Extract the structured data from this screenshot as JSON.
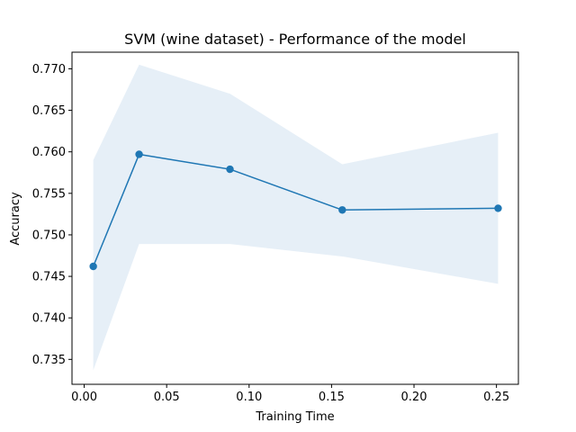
{
  "chart_data": {
    "type": "line",
    "title": "SVM (wine dataset) - Performance of the model",
    "xlabel": "Training Time",
    "ylabel": "Accuracy",
    "xlim": [
      -0.0074,
      0.2633
    ],
    "ylim": [
      0.732,
      0.772
    ],
    "grid": false,
    "x_ticks": [
      0.0,
      0.05,
      0.1,
      0.15,
      0.2,
      0.25
    ],
    "x_tick_labels": [
      "0.00",
      "0.05",
      "0.10",
      "0.15",
      "0.20",
      "0.25"
    ],
    "y_ticks": [
      0.735,
      0.74,
      0.745,
      0.75,
      0.755,
      0.76,
      0.765,
      0.77
    ],
    "y_tick_labels": [
      "0.735",
      "0.740",
      "0.745",
      "0.750",
      "0.755",
      "0.760",
      "0.765",
      "0.770"
    ],
    "series": [
      {
        "x": [
          0.0055,
          0.0333,
          0.0884,
          0.1565,
          0.251
        ],
        "y": [
          0.7462,
          0.7597,
          0.7579,
          0.753,
          0.7532
        ],
        "band_upper": [
          0.759,
          0.7705,
          0.767,
          0.7585,
          0.7623
        ],
        "band_lower": [
          0.7337,
          0.7489,
          0.7489,
          0.7474,
          0.7441
        ],
        "color": "#1f77b4",
        "band_color": "#e6eff7"
      }
    ]
  }
}
